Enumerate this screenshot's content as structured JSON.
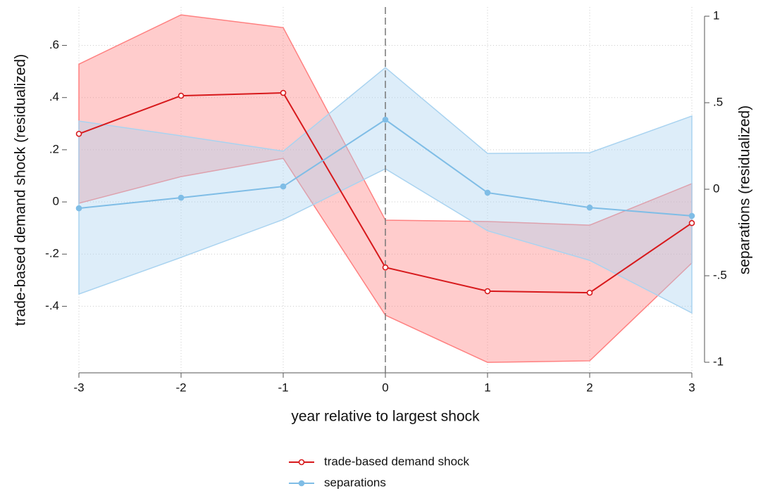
{
  "chart_data": {
    "type": "line",
    "x_label": "year relative to largest shock",
    "y_label": "trade-based demand shock (residualized)",
    "y2_label": "separations (residualized)",
    "x": [
      -3,
      -2,
      -1,
      0,
      1,
      2,
      3
    ],
    "xlim": [
      -3,
      3
    ],
    "xticks": [
      -3,
      -2,
      -1,
      0,
      1,
      2,
      3
    ],
    "ylim": [
      -0.655,
      0.747
    ],
    "yticks": [
      {
        "value": 0.6,
        "label": ".6"
      },
      {
        "value": 0.4,
        "label": ".4"
      },
      {
        "value": 0.2,
        "label": ".2"
      },
      0,
      {
        "value": -0.2,
        "label": "-.2"
      },
      {
        "value": -0.4,
        "label": "-.4"
      }
    ],
    "y2lim": [
      -1.061,
      1.053
    ],
    "y2ticks": [
      1,
      {
        "value": 0.5,
        "label": ".5"
      },
      0,
      {
        "value": -0.5,
        "label": "-.5"
      },
      -1
    ],
    "grid": true,
    "vline": 0,
    "legend": "bottom",
    "series": [
      {
        "name": "trade-based demand shock",
        "color": "#d7191c",
        "band_color": "#ff8080",
        "marker": "hollow",
        "values": [
          0.261,
          0.407,
          0.418,
          -0.251,
          -0.342,
          -0.348,
          -0.081
        ],
        "upper": [
          0.528,
          0.717,
          0.668,
          -0.07,
          -0.075,
          -0.089,
          0.07
        ],
        "lower": [
          -0.005,
          0.097,
          0.167,
          -0.434,
          -0.615,
          -0.609,
          -0.234
        ]
      },
      {
        "name": "separations",
        "color": "#7fbde6",
        "band_color": "#a9d3f0",
        "marker": "filled",
        "axis": "y2",
        "values": [
          -0.11,
          -0.049,
          0.016,
          0.402,
          -0.02,
          -0.106,
          -0.154
        ],
        "upper": [
          0.394,
          0.309,
          0.22,
          0.703,
          0.207,
          0.211,
          0.423
        ],
        "lower": [
          -0.606,
          -0.394,
          -0.175,
          0.118,
          -0.24,
          -0.411,
          -0.715
        ]
      }
    ]
  }
}
